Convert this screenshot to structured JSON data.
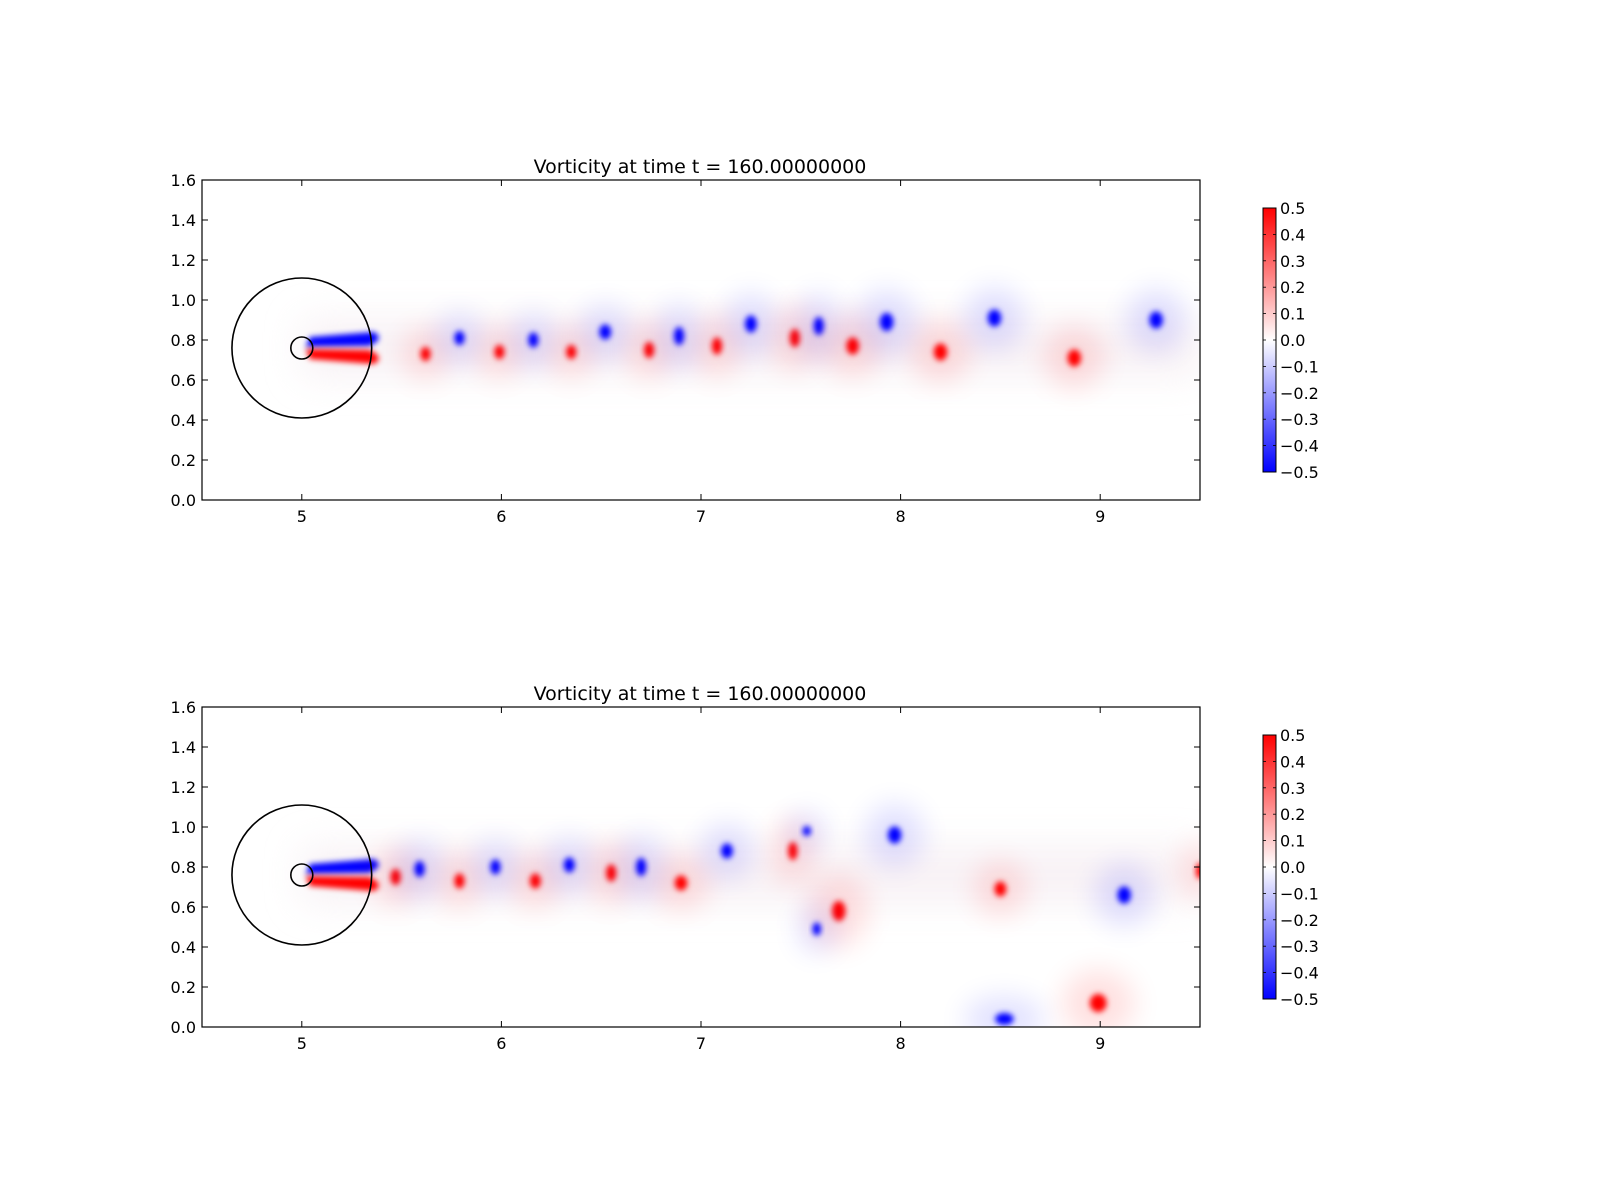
{
  "chart_data": [
    {
      "type": "heatmap",
      "title": "Vorticity at time t =   160.00000000",
      "xlabel": "",
      "ylabel": "",
      "xlim": [
        4.5,
        9.5
      ],
      "ylim": [
        0.0,
        1.6
      ],
      "x_ticks": [
        "5",
        "6",
        "7",
        "8",
        "9"
      ],
      "y_ticks": [
        "0.0",
        "0.2",
        "0.4",
        "0.6",
        "0.8",
        "1.0",
        "1.2",
        "1.4",
        "1.6"
      ],
      "colorbar": {
        "colormap": "bwr",
        "range": [
          -0.5,
          0.5
        ],
        "ticks": [
          "0.5",
          "0.4",
          "0.3",
          "0.2",
          "0.1",
          "0.0",
          "−0.1",
          "−0.2",
          "−0.3",
          "−0.4",
          "−0.5"
        ],
        "colors": {
          "positive": "#ff0000",
          "zero": "#ffffff",
          "negative": "#0000ff"
        }
      },
      "overlays": {
        "outer_circle": {
          "cx": 5.0,
          "cy": 0.76,
          "r": 0.35
        },
        "inner_circle": {
          "cx": 5.0,
          "cy": 0.76,
          "r": 0.055
        }
      },
      "vortices": [
        {
          "x": 5.62,
          "y": 0.73,
          "sign": 1,
          "rx": 0.06,
          "ry": 0.07
        },
        {
          "x": 5.79,
          "y": 0.81,
          "sign": -1,
          "rx": 0.06,
          "ry": 0.07
        },
        {
          "x": 5.99,
          "y": 0.74,
          "sign": 1,
          "rx": 0.06,
          "ry": 0.07
        },
        {
          "x": 6.16,
          "y": 0.8,
          "sign": -1,
          "rx": 0.06,
          "ry": 0.075
        },
        {
          "x": 6.35,
          "y": 0.74,
          "sign": 1,
          "rx": 0.06,
          "ry": 0.07
        },
        {
          "x": 6.52,
          "y": 0.84,
          "sign": -1,
          "rx": 0.07,
          "ry": 0.075
        },
        {
          "x": 6.74,
          "y": 0.75,
          "sign": 1,
          "rx": 0.06,
          "ry": 0.08
        },
        {
          "x": 6.89,
          "y": 0.82,
          "sign": -1,
          "rx": 0.06,
          "ry": 0.09
        },
        {
          "x": 7.08,
          "y": 0.77,
          "sign": 1,
          "rx": 0.06,
          "ry": 0.085
        },
        {
          "x": 7.25,
          "y": 0.88,
          "sign": -1,
          "rx": 0.07,
          "ry": 0.085
        },
        {
          "x": 7.47,
          "y": 0.81,
          "sign": 1,
          "rx": 0.06,
          "ry": 0.09
        },
        {
          "x": 7.59,
          "y": 0.87,
          "sign": -1,
          "rx": 0.06,
          "ry": 0.09
        },
        {
          "x": 7.76,
          "y": 0.77,
          "sign": 1,
          "rx": 0.075,
          "ry": 0.085
        },
        {
          "x": 7.93,
          "y": 0.89,
          "sign": -1,
          "rx": 0.08,
          "ry": 0.09
        },
        {
          "x": 8.2,
          "y": 0.74,
          "sign": 1,
          "rx": 0.08,
          "ry": 0.085
        },
        {
          "x": 8.47,
          "y": 0.91,
          "sign": -1,
          "rx": 0.08,
          "ry": 0.085
        },
        {
          "x": 8.87,
          "y": 0.71,
          "sign": 1,
          "rx": 0.08,
          "ry": 0.085
        },
        {
          "x": 9.28,
          "y": 0.9,
          "sign": -1,
          "rx": 0.08,
          "ry": 0.085
        }
      ]
    },
    {
      "type": "heatmap",
      "title": "Vorticity at time t =   160.00000000",
      "xlabel": "",
      "ylabel": "",
      "xlim": [
        4.5,
        9.5
      ],
      "ylim": [
        0.0,
        1.6
      ],
      "x_ticks": [
        "5",
        "6",
        "7",
        "8",
        "9"
      ],
      "y_ticks": [
        "0.0",
        "0.2",
        "0.4",
        "0.6",
        "0.8",
        "1.0",
        "1.2",
        "1.4",
        "1.6"
      ],
      "colorbar": {
        "colormap": "bwr",
        "range": [
          -0.5,
          0.5
        ],
        "ticks": [
          "0.5",
          "0.4",
          "0.3",
          "0.2",
          "0.1",
          "0.0",
          "−0.1",
          "−0.2",
          "−0.3",
          "−0.4",
          "−0.5"
        ],
        "colors": {
          "positive": "#ff0000",
          "zero": "#ffffff",
          "negative": "#0000ff"
        }
      },
      "overlays": {
        "outer_circle": {
          "cx": 5.0,
          "cy": 0.76,
          "r": 0.35
        },
        "inner_circle": {
          "cx": 5.0,
          "cy": 0.76,
          "r": 0.055
        }
      },
      "vortices": [
        {
          "x": 5.47,
          "y": 0.75,
          "sign": 1,
          "rx": 0.06,
          "ry": 0.08
        },
        {
          "x": 5.59,
          "y": 0.79,
          "sign": -1,
          "rx": 0.06,
          "ry": 0.08
        },
        {
          "x": 5.79,
          "y": 0.73,
          "sign": 1,
          "rx": 0.06,
          "ry": 0.075
        },
        {
          "x": 5.97,
          "y": 0.8,
          "sign": -1,
          "rx": 0.06,
          "ry": 0.075
        },
        {
          "x": 6.17,
          "y": 0.73,
          "sign": 1,
          "rx": 0.065,
          "ry": 0.075
        },
        {
          "x": 6.34,
          "y": 0.81,
          "sign": -1,
          "rx": 0.065,
          "ry": 0.075
        },
        {
          "x": 6.55,
          "y": 0.77,
          "sign": 1,
          "rx": 0.06,
          "ry": 0.085
        },
        {
          "x": 6.7,
          "y": 0.8,
          "sign": -1,
          "rx": 0.06,
          "ry": 0.09
        },
        {
          "x": 6.9,
          "y": 0.72,
          "sign": 1,
          "rx": 0.075,
          "ry": 0.075
        },
        {
          "x": 7.13,
          "y": 0.88,
          "sign": -1,
          "rx": 0.07,
          "ry": 0.075
        },
        {
          "x": 7.46,
          "y": 0.88,
          "sign": 1,
          "rx": 0.055,
          "ry": 0.09
        },
        {
          "x": 7.53,
          "y": 0.98,
          "sign": -1,
          "rx": 0.05,
          "ry": 0.05
        },
        {
          "x": 7.69,
          "y": 0.58,
          "sign": 1,
          "rx": 0.08,
          "ry": 0.1
        },
        {
          "x": 7.58,
          "y": 0.49,
          "sign": -1,
          "rx": 0.05,
          "ry": 0.065
        },
        {
          "x": 7.97,
          "y": 0.96,
          "sign": -1,
          "rx": 0.08,
          "ry": 0.085
        },
        {
          "x": 8.5,
          "y": 0.69,
          "sign": 1,
          "rx": 0.07,
          "ry": 0.075
        },
        {
          "x": 9.12,
          "y": 0.66,
          "sign": -1,
          "rx": 0.08,
          "ry": 0.085
        },
        {
          "x": 8.99,
          "y": 0.12,
          "sign": 1,
          "rx": 0.1,
          "ry": 0.09
        },
        {
          "x": 8.52,
          "y": 0.04,
          "sign": -1,
          "rx": 0.11,
          "ry": 0.06
        },
        {
          "x": 9.5,
          "y": 0.78,
          "sign": 1,
          "rx": 0.05,
          "ry": 0.08
        }
      ]
    }
  ]
}
